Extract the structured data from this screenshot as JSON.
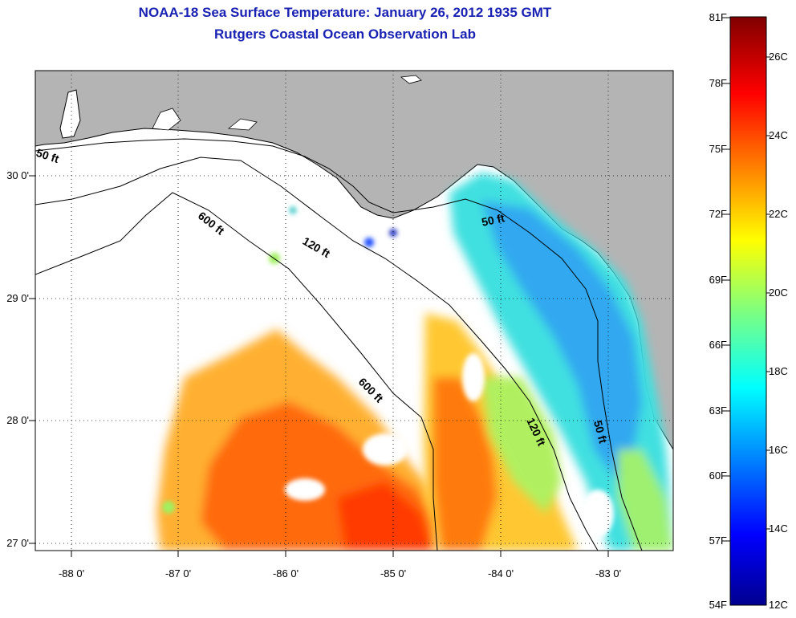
{
  "title": {
    "line1": "NOAA-18 Sea Surface Temperature:  January 26, 2012 1935 GMT",
    "line2": "Rutgers Coastal Ocean Observation Lab"
  },
  "axes": {
    "lat_labels": [
      "30 0'",
      "29 0'",
      "28 0'",
      "27 0'"
    ],
    "lon_labels": [
      "-88 0'",
      "-87 0'",
      "-86 0'",
      "-85 0'",
      "-84 0'",
      "-83 0'"
    ]
  },
  "isobaths": {
    "ft50": "50 ft",
    "ft120": "120 ft",
    "ft600": "600 ft"
  },
  "colorbar": {
    "fahrenheit": [
      "81F",
      "78F",
      "75F",
      "72F",
      "69F",
      "66F",
      "63F",
      "60F",
      "57F",
      "54F"
    ],
    "celsius": [
      "26C",
      "24C",
      "22C",
      "20C",
      "18C",
      "16C",
      "14C",
      "12C"
    ]
  },
  "colors": {
    "title": "#1a22b4",
    "land": "#b4b4b4",
    "warm": "#ff5000",
    "cool": "#00c8ff"
  }
}
